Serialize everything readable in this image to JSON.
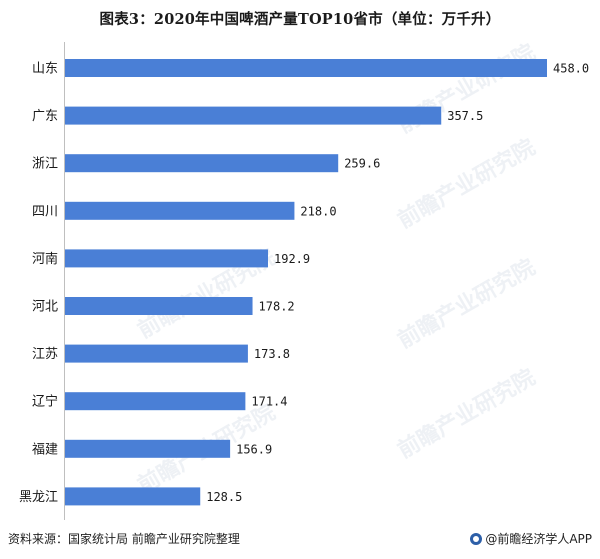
{
  "watermark": "前瞻产业研究院",
  "source": "资料来源：国家统计局  前瞻产业研究院整理",
  "brand": "@前瞻经济学人APP",
  "bar_color": "#4a7fd6",
  "chart_data": {
    "type": "bar",
    "orientation": "horizontal",
    "title": "图表3：2020年中国啤酒产量TOP10省市（单位：万千升）",
    "categories": [
      "山东",
      "广东",
      "浙江",
      "四川",
      "河南",
      "河北",
      "江苏",
      "辽宁",
      "福建",
      "黑龙江"
    ],
    "values": [
      458.0,
      357.5,
      259.6,
      218.0,
      192.9,
      178.2,
      173.8,
      171.4,
      156.9,
      128.5
    ],
    "value_labels": [
      "458.0",
      "357.5",
      "259.6",
      "218.0",
      "192.9",
      "178.2",
      "173.8",
      "171.4",
      "156.9",
      "128.5"
    ],
    "xlim": [
      0,
      500
    ],
    "grid": false,
    "legend": "none"
  }
}
